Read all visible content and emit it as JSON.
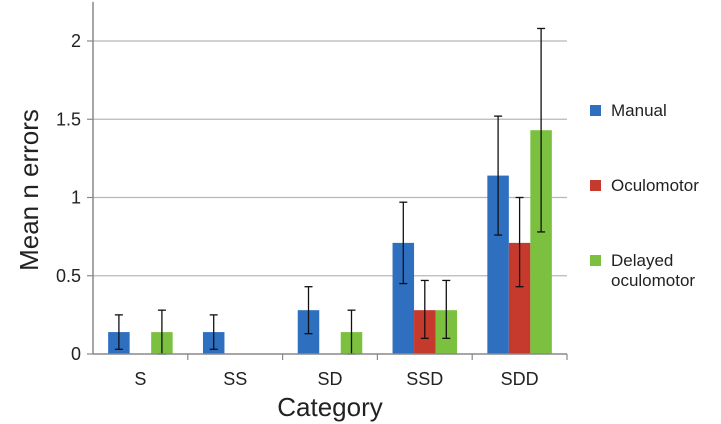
{
  "chart_data": {
    "type": "bar",
    "categories": [
      "S",
      "SS",
      "SD",
      "SSD",
      "SDD"
    ],
    "series": [
      {
        "name": "Manual",
        "color": "#2e6fc0",
        "values": [
          0.14,
          0.14,
          0.28,
          0.71,
          1.14
        ],
        "err_low": [
          0.03,
          0.03,
          0.13,
          0.45,
          0.76
        ],
        "err_high": [
          0.25,
          0.25,
          0.43,
          0.97,
          1.52
        ]
      },
      {
        "name": "Oculomotor",
        "color": "#c63a2e",
        "values": [
          0.0,
          0.0,
          0.0,
          0.28,
          0.71
        ],
        "err_low": [
          null,
          null,
          null,
          0.1,
          0.43
        ],
        "err_high": [
          null,
          null,
          null,
          0.47,
          1.0
        ]
      },
      {
        "name": "Delayed oculomotor",
        "color": "#7cc040",
        "values": [
          0.14,
          0.0,
          0.14,
          0.28,
          1.43
        ],
        "err_low": [
          0.0,
          null,
          0.0,
          0.1,
          0.78
        ],
        "err_high": [
          0.28,
          null,
          0.28,
          0.47,
          2.08
        ]
      }
    ],
    "legend_lines": [
      [
        "Manual"
      ],
      [
        "Oculomotor"
      ],
      [
        "Delayed",
        "oculomotor"
      ]
    ],
    "xlabel": "Category",
    "ylabel": "Mean n errors",
    "ylim": [
      0,
      2.25
    ],
    "yticks": [
      0,
      0.5,
      1,
      1.5,
      2
    ],
    "ytick_labels": [
      "0",
      "0.5",
      "1",
      "1.5",
      "2"
    ],
    "grid": true,
    "legend_position": "right"
  }
}
